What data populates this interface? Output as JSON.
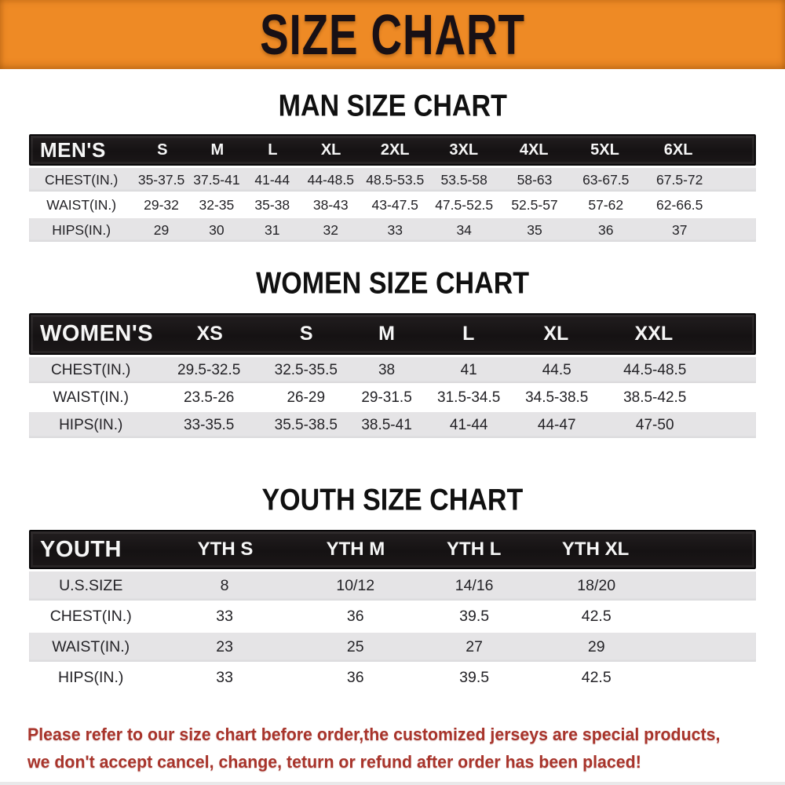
{
  "banner": {
    "title": "SIZE CHART",
    "bg_color": "#ee8a25",
    "text_color": "#181015"
  },
  "colors": {
    "header_bar": "#1b1718",
    "shaded_row": "#e5e4e6",
    "disclaimer_text": "#a8342b"
  },
  "chart_data": [
    {
      "type": "table",
      "name": "men",
      "title": "MAN SIZE CHART",
      "header_label": "MEN'S",
      "columns": [
        "S",
        "M",
        "L",
        "XL",
        "2XL",
        "3XL",
        "4XL",
        "5XL",
        "6XL"
      ],
      "rows": [
        {
          "label": "CHEST(IN.)",
          "values": [
            "35-37.5",
            "37.5-41",
            "41-44",
            "44-48.5",
            "48.5-53.5",
            "53.5-58",
            "58-63",
            "63-67.5",
            "67.5-72"
          ]
        },
        {
          "label": "WAIST(IN.)",
          "values": [
            "29-32",
            "32-35",
            "35-38",
            "38-43",
            "43-47.5",
            "47.5-52.5",
            "52.5-57",
            "57-62",
            "62-66.5"
          ]
        },
        {
          "label": "HIPS(IN.)",
          "values": [
            "29",
            "30",
            "31",
            "32",
            "33",
            "34",
            "35",
            "36",
            "37"
          ]
        }
      ]
    },
    {
      "type": "table",
      "name": "women",
      "title": "WOMEN SIZE CHART",
      "header_label": "WOMEN'S",
      "columns": [
        "XS",
        "S",
        "M",
        "L",
        "XL",
        "XXL"
      ],
      "rows": [
        {
          "label": "CHEST(IN.)",
          "values": [
            "29.5-32.5",
            "32.5-35.5",
            "38",
            "41",
            "44.5",
            "44.5-48.5"
          ]
        },
        {
          "label": "WAIST(IN.)",
          "values": [
            "23.5-26",
            "26-29",
            "29-31.5",
            "31.5-34.5",
            "34.5-38.5",
            "38.5-42.5"
          ]
        },
        {
          "label": "HIPS(IN.)",
          "values": [
            "33-35.5",
            "35.5-38.5",
            "38.5-41",
            "41-44",
            "44-47",
            "47-50"
          ]
        }
      ]
    },
    {
      "type": "table",
      "name": "youth",
      "title": "YOUTH SIZE CHART",
      "header_label": "YOUTH",
      "columns": [
        "YTH S",
        "YTH M",
        "YTH L",
        "YTH XL"
      ],
      "rows": [
        {
          "label": "U.S.SIZE",
          "values": [
            "8",
            "10/12",
            "14/16",
            "18/20"
          ]
        },
        {
          "label": "CHEST(IN.)",
          "values": [
            "33",
            "36",
            "39.5",
            "42.5"
          ]
        },
        {
          "label": "WAIST(IN.)",
          "values": [
            "23",
            "25",
            "27",
            "29"
          ]
        },
        {
          "label": "HIPS(IN.)",
          "values": [
            "33",
            "36",
            "39.5",
            "42.5"
          ]
        }
      ]
    }
  ],
  "footer": {
    "line1": "Please refer to our size chart before order,the customized jerseys are special products,",
    "line2": "we don't accept cancel, change, teturn or refund after order has been placed!"
  }
}
